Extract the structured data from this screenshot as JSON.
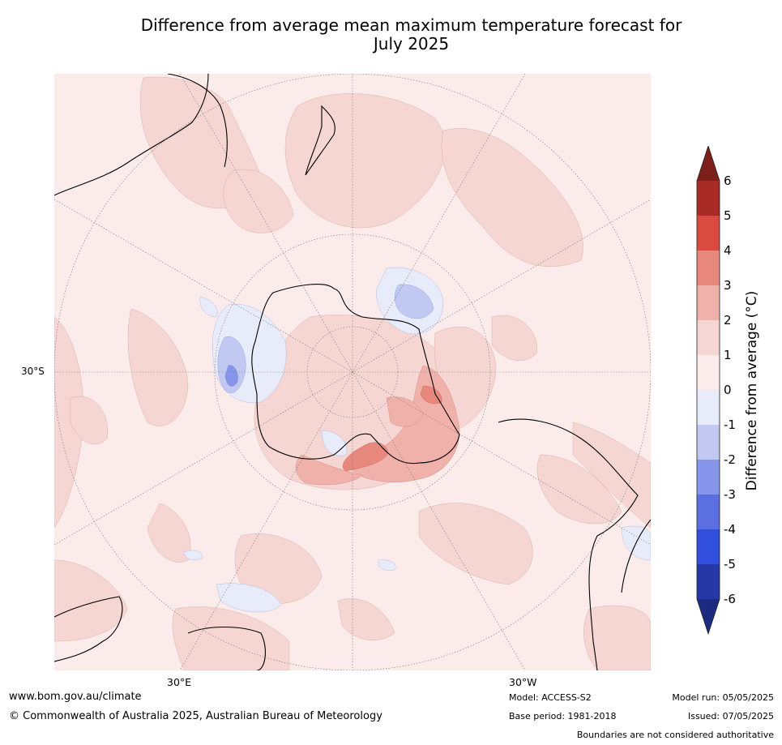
{
  "title_line1": "Difference from average mean maximum temperature forecast for",
  "title_line2": "July 2025",
  "map": {
    "projection": "south-polar-stereographic",
    "graticule_labels": {
      "lat": "30°S",
      "lon_left": "30°E",
      "lon_right": "30°W"
    }
  },
  "legend": {
    "label": "Difference from average (°C)",
    "tick_labels": [
      "6",
      "5",
      "4",
      "3",
      "2",
      "1",
      "0",
      "-1",
      "-2",
      "-3",
      "-4",
      "-5",
      "-6"
    ],
    "colors": [
      "#7c1f1a",
      "#a92b26",
      "#d94b40",
      "#e8877c",
      "#efb1aa",
      "#f6d6d3",
      "#fbeceb",
      "#e8ebfa",
      "#c1c8f2",
      "#8795ea",
      "#5b6fe0",
      "#2f4fdc",
      "#2637a6",
      "#1c2b80"
    ]
  },
  "footer": {
    "website": "www.bom.gov.au/climate",
    "copyright": "© Commonwealth of Australia 2025, Australian Bureau of Meteorology",
    "model": "Model: ACCESS-S2",
    "base_period": "Base period: 1981-2018",
    "model_run": "Model run: 05/05/2025",
    "issued": "Issued: 07/05/2025",
    "disclaimer": "Boundaries are not considered authoritative"
  }
}
